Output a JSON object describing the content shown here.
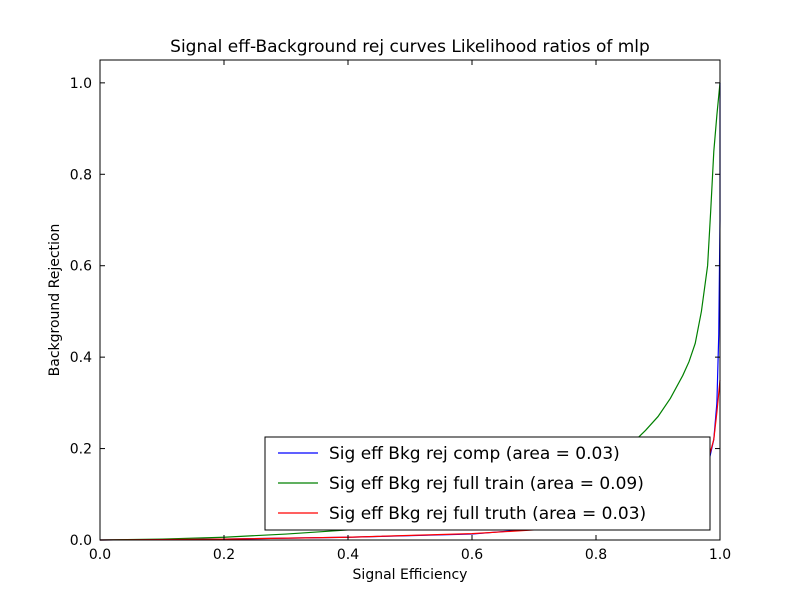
{
  "chart_data": {
    "type": "line",
    "title": "Signal eff-Background rej curves Likelihood ratios of mlp",
    "xlabel": "Signal Efficiency",
    "ylabel": "Background Rejection",
    "xlim": [
      0.0,
      1.0
    ],
    "ylim": [
      0.0,
      1.05
    ],
    "xticks": [
      0.0,
      0.2,
      0.4,
      0.6,
      0.8,
      1.0
    ],
    "yticks": [
      0.0,
      0.2,
      0.4,
      0.6,
      0.8,
      1.0
    ],
    "xtick_labels": [
      "0.0",
      "0.2",
      "0.4",
      "0.6",
      "0.8",
      "1.0"
    ],
    "ytick_labels": [
      "0.0",
      "0.2",
      "0.4",
      "0.6",
      "0.8",
      "1.0"
    ],
    "grid": false,
    "legend_position": "lower-right",
    "series": [
      {
        "name": "Sig eff Bkg rej comp (area = 0.03)",
        "color": "#0000ff",
        "x": [
          0.0,
          0.2,
          0.4,
          0.6,
          0.8,
          0.9,
          0.95,
          0.98,
          0.99,
          0.995,
          0.998,
          1.0,
          1.0
        ],
        "y": [
          0.0,
          0.002,
          0.006,
          0.013,
          0.035,
          0.065,
          0.1,
          0.16,
          0.22,
          0.3,
          0.45,
          0.7,
          1.0
        ]
      },
      {
        "name": "Sig eff Bkg rej full train (area = 0.09)",
        "color": "#008000",
        "x": [
          0.0,
          0.1,
          0.2,
          0.3,
          0.4,
          0.5,
          0.6,
          0.7,
          0.75,
          0.8,
          0.85,
          0.88,
          0.9,
          0.92,
          0.94,
          0.95,
          0.96,
          0.97,
          0.98,
          0.985,
          0.99,
          0.995,
          1.0
        ],
        "y": [
          0.0,
          0.002,
          0.006,
          0.013,
          0.022,
          0.035,
          0.055,
          0.09,
          0.115,
          0.15,
          0.2,
          0.24,
          0.27,
          0.31,
          0.36,
          0.39,
          0.43,
          0.5,
          0.6,
          0.72,
          0.85,
          0.93,
          1.0
        ]
      },
      {
        "name": "Sig eff Bkg rej full truth (area = 0.03)",
        "color": "#ff0000",
        "x": [
          0.0,
          0.2,
          0.4,
          0.6,
          0.7,
          0.8,
          0.85,
          0.9,
          0.93,
          0.95,
          0.97,
          0.98,
          0.99,
          0.995,
          1.0
        ],
        "y": [
          0.0,
          0.002,
          0.006,
          0.014,
          0.022,
          0.035,
          0.045,
          0.065,
          0.085,
          0.1,
          0.14,
          0.17,
          0.22,
          0.28,
          0.35
        ]
      }
    ]
  }
}
